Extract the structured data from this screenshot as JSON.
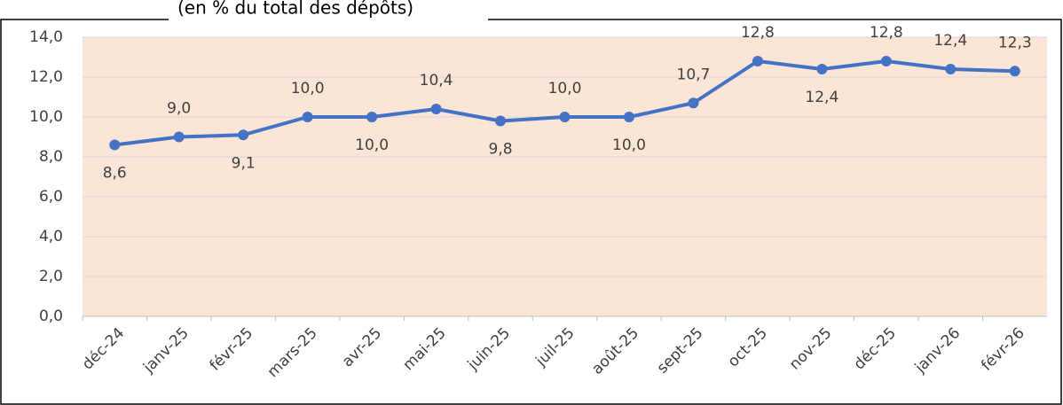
{
  "chart_data": {
    "type": "line",
    "subtitle": "(en % du total des dépôts)",
    "categories": [
      "déc-24",
      "janv-25",
      "févr-25",
      "mars-25",
      "avr-25",
      "mai-25",
      "juin-25",
      "juil-25",
      "août-25",
      "sept-25",
      "oct-25",
      "nov-25",
      "déc-25",
      "janv-26",
      "févr-26"
    ],
    "series": [
      {
        "name": null,
        "color": "#4472c4",
        "values": [
          8.6,
          9.0,
          9.1,
          10.0,
          10.0,
          10.4,
          9.8,
          10.0,
          10.0,
          10.7,
          12.8,
          12.4,
          12.8,
          12.4,
          12.3
        ],
        "value_labels": [
          "8,6",
          "9,0",
          "9,1",
          "10,0",
          "10,0",
          "10,4",
          "9,8",
          "10,0",
          "10,0",
          "10,7",
          "12,8",
          "12,4",
          "12,8",
          "12,4",
          "12,3"
        ]
      }
    ],
    "ylim": [
      0,
      14
    ],
    "yticks": [
      {
        "value": 0,
        "label": "0,0"
      },
      {
        "value": 2,
        "label": "2,0"
      },
      {
        "value": 4,
        "label": "4,0"
      },
      {
        "value": 6,
        "label": "6,0"
      },
      {
        "value": 8,
        "label": "8,0"
      },
      {
        "value": 10,
        "label": "10,0"
      },
      {
        "value": 12,
        "label": "12,0"
      },
      {
        "value": 14,
        "label": "14,0"
      }
    ],
    "grid": true,
    "background": "#fbe5d6"
  }
}
